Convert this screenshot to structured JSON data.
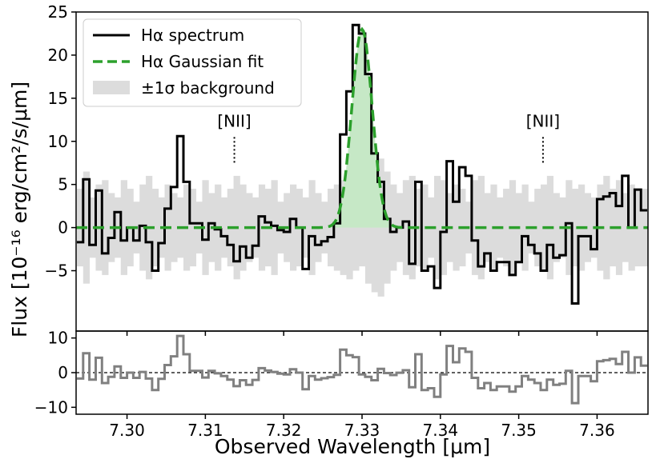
{
  "chart_data": [
    {
      "panel": "main",
      "type": "line",
      "xlim": [
        7.2935,
        7.3665
      ],
      "ylim": [
        -12,
        25
      ],
      "xticks": [
        7.3,
        7.31,
        7.32,
        7.33,
        7.34,
        7.35,
        7.36
      ],
      "yticks": [
        -5,
        0,
        5,
        10,
        15,
        20,
        25
      ],
      "ytick_labels": [
        "−5",
        "0",
        "5",
        "10",
        "15",
        "20",
        "25"
      ],
      "ylabel": "Flux [10⁻¹⁶ erg/cm²/s/μm]",
      "legend": {
        "position": "top-left",
        "entries": [
          "Hα spectrum",
          "Hα Gaussian fit",
          "±1σ background"
        ]
      },
      "annotations": [
        {
          "text": "[NII]",
          "x": 7.3137
        },
        {
          "text": "[NII]",
          "x": 7.3531
        }
      ],
      "bin_width": 0.0008,
      "spectrum": [
        {
          "x": 7.294,
          "y": -1.7
        },
        {
          "x": 7.2948,
          "y": 5.6
        },
        {
          "x": 7.2956,
          "y": -2.0
        },
        {
          "x": 7.2964,
          "y": 4.3
        },
        {
          "x": 7.2972,
          "y": -3.0
        },
        {
          "x": 7.298,
          "y": -1.2
        },
        {
          "x": 7.2988,
          "y": 1.8
        },
        {
          "x": 7.2996,
          "y": -1.5
        },
        {
          "x": 7.3004,
          "y": 0.0
        },
        {
          "x": 7.3012,
          "y": -1.5
        },
        {
          "x": 7.302,
          "y": 0.2
        },
        {
          "x": 7.3028,
          "y": -1.7
        },
        {
          "x": 7.3036,
          "y": -5.0
        },
        {
          "x": 7.3044,
          "y": -1.8
        },
        {
          "x": 7.3052,
          "y": 2.2
        },
        {
          "x": 7.306,
          "y": 4.7
        },
        {
          "x": 7.3068,
          "y": 10.6
        },
        {
          "x": 7.3076,
          "y": 5.3
        },
        {
          "x": 7.3084,
          "y": 0.5
        },
        {
          "x": 7.3092,
          "y": 0.5
        },
        {
          "x": 7.31,
          "y": -1.4
        },
        {
          "x": 7.3108,
          "y": 0.5
        },
        {
          "x": 7.3116,
          "y": -0.2
        },
        {
          "x": 7.3124,
          "y": -1.0
        },
        {
          "x": 7.3132,
          "y": -2.0
        },
        {
          "x": 7.314,
          "y": -3.9
        },
        {
          "x": 7.3148,
          "y": -2.2
        },
        {
          "x": 7.3156,
          "y": -3.5
        },
        {
          "x": 7.3164,
          "y": -2.1
        },
        {
          "x": 7.3172,
          "y": 1.3
        },
        {
          "x": 7.318,
          "y": 0.6
        },
        {
          "x": 7.3188,
          "y": 0.2
        },
        {
          "x": 7.3196,
          "y": -0.3
        },
        {
          "x": 7.3204,
          "y": -0.5
        },
        {
          "x": 7.3212,
          "y": 1.0
        },
        {
          "x": 7.322,
          "y": 0.0
        },
        {
          "x": 7.3228,
          "y": -4.8
        },
        {
          "x": 7.3236,
          "y": -1.0
        },
        {
          "x": 7.3244,
          "y": -2.0
        },
        {
          "x": 7.3252,
          "y": -1.6
        },
        {
          "x": 7.326,
          "y": -1.1
        },
        {
          "x": 7.3268,
          "y": 0.5
        },
        {
          "x": 7.3276,
          "y": 10.8
        },
        {
          "x": 7.3284,
          "y": 15.8
        },
        {
          "x": 7.3292,
          "y": 23.5
        },
        {
          "x": 7.33,
          "y": 22.5
        },
        {
          "x": 7.3308,
          "y": 17.8
        },
        {
          "x": 7.3316,
          "y": 8.6
        },
        {
          "x": 7.3324,
          "y": 5.3
        },
        {
          "x": 7.3332,
          "y": 1.0
        },
        {
          "x": 7.334,
          "y": -0.5
        },
        {
          "x": 7.3348,
          "y": 0.0
        },
        {
          "x": 7.3356,
          "y": 0.7
        },
        {
          "x": 7.3364,
          "y": -4.2
        },
        {
          "x": 7.3372,
          "y": 5.3
        },
        {
          "x": 7.338,
          "y": -5.0
        },
        {
          "x": 7.3388,
          "y": -4.5
        },
        {
          "x": 7.3396,
          "y": -7.0
        },
        {
          "x": 7.3404,
          "y": -0.5
        },
        {
          "x": 7.3412,
          "y": 7.7
        },
        {
          "x": 7.342,
          "y": 3.0
        },
        {
          "x": 7.3428,
          "y": 7.0
        },
        {
          "x": 7.3436,
          "y": 6.0
        },
        {
          "x": 7.3444,
          "y": -1.5
        },
        {
          "x": 7.3452,
          "y": -4.5
        },
        {
          "x": 7.346,
          "y": -3.0
        },
        {
          "x": 7.3468,
          "y": -5.0
        },
        {
          "x": 7.3476,
          "y": -4.0
        },
        {
          "x": 7.3484,
          "y": -4.0
        },
        {
          "x": 7.3492,
          "y": -5.5
        },
        {
          "x": 7.35,
          "y": -4.0
        },
        {
          "x": 7.3508,
          "y": -1.0
        },
        {
          "x": 7.3516,
          "y": -2.0
        },
        {
          "x": 7.3524,
          "y": -3.0
        },
        {
          "x": 7.3532,
          "y": -5.0
        },
        {
          "x": 7.354,
          "y": -2.0
        },
        {
          "x": 7.3548,
          "y": -3.5
        },
        {
          "x": 7.3556,
          "y": -3.2
        },
        {
          "x": 7.3564,
          "y": 0.5
        },
        {
          "x": 7.3572,
          "y": -8.8
        },
        {
          "x": 7.358,
          "y": -1.0
        },
        {
          "x": 7.3588,
          "y": -1.0
        },
        {
          "x": 7.3596,
          "y": -2.5
        },
        {
          "x": 7.3604,
          "y": 3.3
        },
        {
          "x": 7.3612,
          "y": 3.6
        },
        {
          "x": 7.362,
          "y": 4.0
        },
        {
          "x": 7.3628,
          "y": 2.5
        },
        {
          "x": 7.3636,
          "y": 6.0
        },
        {
          "x": 7.3644,
          "y": 0.0
        },
        {
          "x": 7.3652,
          "y": 4.4
        },
        {
          "x": 7.366,
          "y": 2.0
        }
      ],
      "gaussian_fit": {
        "amplitude": 23.0,
        "center": 7.33,
        "sigma": 0.0013,
        "baseline": 0.0
      },
      "background_sigma": [
        4.5,
        6.5,
        3.5,
        5.0,
        5.5,
        4.0,
        3.5,
        5.5,
        4.5,
        3.0,
        5.0,
        6.0,
        4.5,
        3.5,
        5.0,
        4.0,
        3.5,
        5.0,
        4.5,
        3.0,
        5.5,
        4.0,
        5.0,
        3.5,
        4.5,
        6.0,
        5.0,
        4.0,
        3.5,
        5.0,
        4.5,
        5.5,
        3.0,
        4.0,
        5.0,
        4.5,
        3.5,
        5.5,
        4.0,
        3.0,
        4.5,
        5.0,
        5.5,
        6.0,
        5.0,
        4.5,
        6.5,
        7.5,
        8.0,
        6.5,
        5.0,
        4.0,
        5.5,
        6.0,
        4.5,
        5.0,
        3.5,
        6.0,
        5.5,
        4.0,
        5.0,
        4.5,
        3.0,
        5.5,
        6.0,
        4.0,
        5.0,
        3.5,
        4.5,
        5.5,
        4.0,
        5.0,
        3.0,
        4.5,
        5.0,
        6.0,
        4.0,
        3.5,
        5.5,
        4.5,
        5.0,
        4.0,
        3.5,
        5.0,
        6.0,
        4.5,
        5.5,
        4.0,
        5.0,
        4.5
      ]
    },
    {
      "panel": "residual",
      "type": "line",
      "xlim": [
        7.2935,
        7.3665
      ],
      "ylim": [
        -12,
        12
      ],
      "yticks": [
        -10,
        0,
        10
      ],
      "ytick_labels": [
        "−10",
        "0",
        "10"
      ],
      "xlabel": "Observed Wavelength [μm]",
      "xtick_labels": [
        "7.30",
        "7.31",
        "7.32",
        "7.33",
        "7.34",
        "7.35",
        "7.36"
      ],
      "zero_line": true,
      "residual_of": "spectrum − gaussian_fit"
    }
  ],
  "colors": {
    "spectrum": "#000000",
    "fit": "#2ca02c",
    "fit_fill": "#c6e8c6",
    "background": "#dcdcdc",
    "residual": "#808080"
  }
}
